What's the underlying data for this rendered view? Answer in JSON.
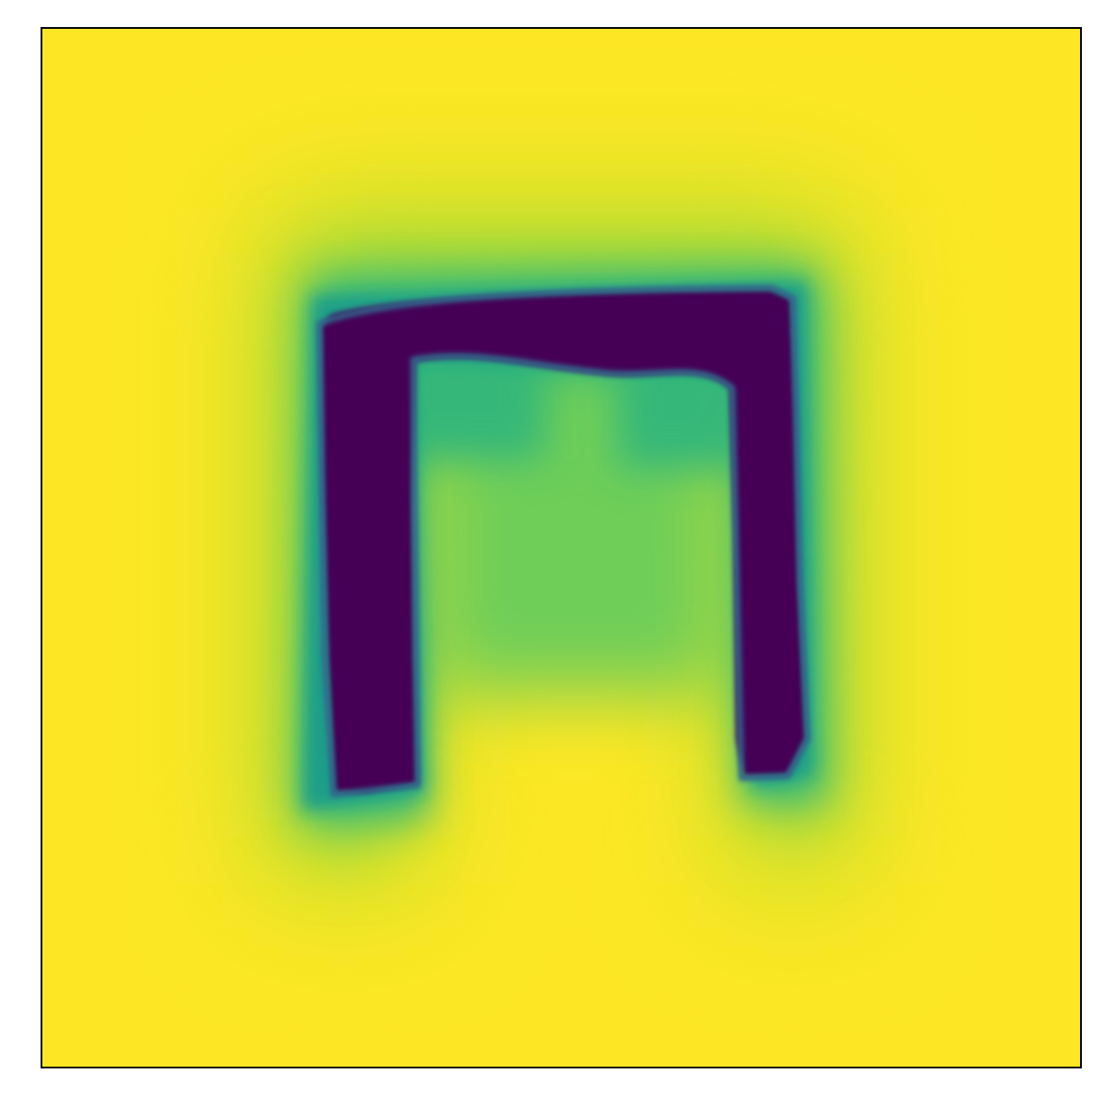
{
  "figure": {
    "colormap": "viridis",
    "colors": {
      "high": "#fde725",
      "upper": "#b5de2b",
      "mid_high": "#6ece58",
      "mid": "#35b779",
      "teal": "#1f9e89",
      "low": "#31688e",
      "lowest": "#440154",
      "frame": "#000000",
      "background": "#ffffff"
    },
    "axes": {
      "ticks_visible": false,
      "grid": false
    }
  }
}
